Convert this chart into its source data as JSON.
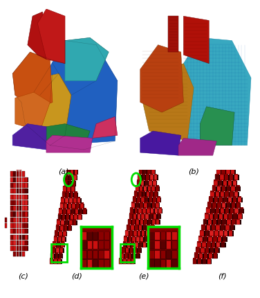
{
  "figure_width": 3.76,
  "figure_height": 4.3,
  "dpi": 100,
  "background_color": "#ffffff",
  "label_a": "(a)",
  "label_b": "(b)",
  "label_c": "(c)",
  "label_d": "(d)",
  "label_e": "(e)",
  "label_f": "(f)",
  "label_fontsize": 8,
  "circle_color": "#00dd00",
  "box_color": "#00dd00",
  "bunny_colors": {
    "orange_head": "#c85010",
    "orange_body": "#d06820",
    "gold": "#c8961e",
    "blue": "#2060c0",
    "teal": "#30a8b0",
    "green": "#208040",
    "purple": "#5020a0",
    "magenta": "#b03090",
    "pink": "#cc3060",
    "red_ear": "#b01010",
    "dark_red_ear": "#901010"
  },
  "voxel_bunny_colors": {
    "orange_head": "#b84010",
    "brown_front": "#a85018",
    "gold": "#b87818",
    "blue_body": "#2878c0",
    "teal_body": "#38a8c0",
    "green": "#289050",
    "purple": "#4818a0",
    "magenta": "#a02888",
    "red_ear": "#a01008",
    "dark_orange": "#904010"
  },
  "ear_dark": "#5a0000",
  "ear_mid": "#8b0000",
  "ear_bright": "#cc1010",
  "ear_highlight": "#dd2020"
}
